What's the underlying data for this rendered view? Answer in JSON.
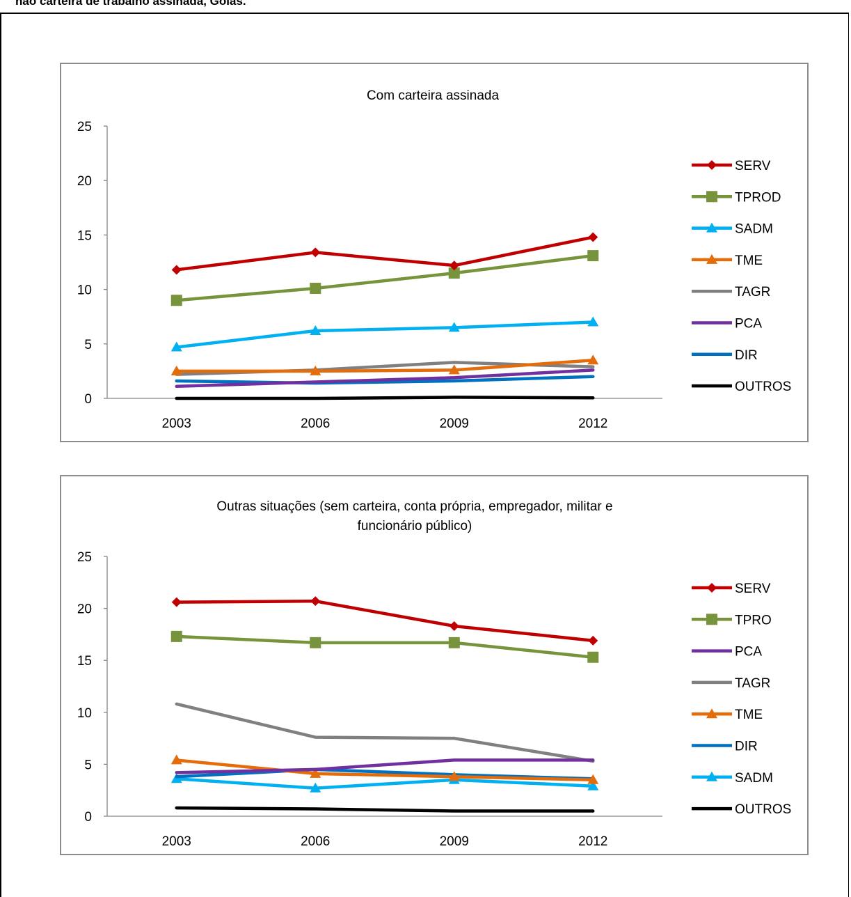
{
  "heading": "não carteira de trabalho assinada, Goiás.",
  "chart_data": [
    {
      "type": "line",
      "title": "Com carteira assinada",
      "title_lines": [
        "Com carteira assinada"
      ],
      "categories": [
        "2003",
        "2006",
        "2009",
        "2012"
      ],
      "ylim": [
        0,
        25
      ],
      "yticks": [
        0,
        5,
        10,
        15,
        20,
        25
      ],
      "grid": false,
      "legend": "right",
      "series": [
        {
          "name": "SERV",
          "color": "#c00000",
          "marker": "diamond",
          "values": [
            11.8,
            13.4,
            12.2,
            14.8
          ]
        },
        {
          "name": "TPROD",
          "color": "#77933c",
          "marker": "square",
          "values": [
            9.0,
            10.1,
            11.5,
            13.1
          ]
        },
        {
          "name": "SADM",
          "color": "#00b0f0",
          "marker": "triangle",
          "values": [
            4.7,
            6.2,
            6.5,
            7.0
          ]
        },
        {
          "name": "TME",
          "color": "#e46c0a",
          "marker": "triangle",
          "values": [
            2.5,
            2.5,
            2.6,
            3.5
          ]
        },
        {
          "name": "TAGR",
          "color": "#808080",
          "marker": "none",
          "values": [
            2.2,
            2.6,
            3.3,
            2.9
          ]
        },
        {
          "name": "PCA",
          "color": "#7030a0",
          "marker": "none",
          "values": [
            1.1,
            1.5,
            1.9,
            2.6
          ]
        },
        {
          "name": "DIR",
          "color": "#0070c0",
          "marker": "none",
          "values": [
            1.6,
            1.4,
            1.6,
            2.0
          ]
        },
        {
          "name": "OUTROS",
          "color": "#000000",
          "marker": "none",
          "values": [
            0.0,
            0.0,
            0.1,
            0.05
          ]
        }
      ]
    },
    {
      "type": "line",
      "title": "Outras situações (sem carteira, conta própria, empregador, militar e funcionário público)",
      "title_lines": [
        "Outras situações (sem carteira, conta própria, empregador, militar e",
        "funcionário público)"
      ],
      "categories": [
        "2003",
        "2006",
        "2009",
        "2012"
      ],
      "ylim": [
        0,
        25
      ],
      "yticks": [
        0,
        5,
        10,
        15,
        20,
        25
      ],
      "grid": false,
      "legend": "right",
      "series": [
        {
          "name": "SERV",
          "color": "#c00000",
          "marker": "diamond",
          "values": [
            20.6,
            20.7,
            18.3,
            16.9
          ]
        },
        {
          "name": "TPRO",
          "color": "#77933c",
          "marker": "square",
          "values": [
            17.3,
            16.7,
            16.7,
            15.3
          ]
        },
        {
          "name": "PCA",
          "color": "#7030a0",
          "marker": "none",
          "values": [
            4.2,
            4.5,
            5.4,
            5.4
          ]
        },
        {
          "name": "TAGR",
          "color": "#808080",
          "marker": "none",
          "values": [
            10.8,
            7.6,
            7.5,
            5.3
          ]
        },
        {
          "name": "TME",
          "color": "#e46c0a",
          "marker": "triangle",
          "values": [
            5.4,
            4.1,
            3.8,
            3.5
          ]
        },
        {
          "name": "DIR",
          "color": "#0070c0",
          "marker": "none",
          "values": [
            3.8,
            4.5,
            4.0,
            3.6
          ]
        },
        {
          "name": "SADM",
          "color": "#00b0f0",
          "marker": "triangle",
          "values": [
            3.6,
            2.7,
            3.5,
            2.9
          ]
        },
        {
          "name": "OUTROS",
          "color": "#000000",
          "marker": "none",
          "values": [
            0.8,
            0.7,
            0.5,
            0.5
          ]
        }
      ]
    }
  ]
}
